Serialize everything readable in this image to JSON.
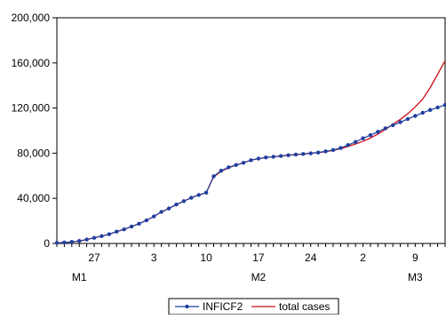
{
  "chart_data": {
    "type": "line",
    "ylim": [
      0,
      200000
    ],
    "y_ticks": [
      0,
      40000,
      80000,
      120000,
      160000,
      200000
    ],
    "y_tick_labels": [
      "0",
      "40,000",
      "80,000",
      "120,000",
      "160,000",
      "200,000"
    ],
    "x_tick_labels": [
      {
        "index": 5,
        "label": "27"
      },
      {
        "index": 13,
        "label": "3"
      },
      {
        "index": 20,
        "label": "10"
      },
      {
        "index": 27,
        "label": "17"
      },
      {
        "index": 34,
        "label": "24"
      },
      {
        "index": 41,
        "label": "2"
      },
      {
        "index": 48,
        "label": "9"
      }
    ],
    "x_group_labels": [
      {
        "index": 3,
        "label": "M1"
      },
      {
        "index": 27,
        "label": "M2"
      },
      {
        "index": 48,
        "label": "M3"
      }
    ],
    "n_points": 53,
    "series": [
      {
        "name": "INFICF2",
        "color": "#1f3f9f",
        "marker": "dot",
        "values": [
          550,
          900,
          1400,
          2200,
          3500,
          5000,
          6500,
          8200,
          10500,
          12500,
          15000,
          17500,
          20500,
          24000,
          28000,
          31000,
          34500,
          37500,
          40500,
          43000,
          45000,
          59500,
          64500,
          67500,
          69500,
          71500,
          73800,
          75200,
          76200,
          76800,
          77500,
          78200,
          78800,
          79300,
          79900,
          80600,
          81600,
          82800,
          84600,
          87200,
          90000,
          93200,
          96000,
          99000,
          102000,
          104800,
          107500,
          110300,
          113000,
          115800,
          118300,
          120500,
          122800
        ]
      },
      {
        "name": "total cases",
        "color": "#d0101a",
        "marker": "none",
        "values": [
          550,
          900,
          1400,
          2200,
          3500,
          5000,
          6500,
          8200,
          10500,
          12500,
          15000,
          17500,
          20500,
          24000,
          28000,
          31000,
          34500,
          37500,
          40500,
          43000,
          45000,
          59000,
          64000,
          67000,
          69500,
          71500,
          73800,
          75200,
          76200,
          76800,
          77500,
          78200,
          78800,
          79300,
          79900,
          80500,
          81300,
          82500,
          84000,
          86000,
          88200,
          90500,
          93500,
          97000,
          101000,
          105500,
          110000,
          115000,
          121000,
          128000,
          138000,
          150000,
          162000
        ]
      }
    ]
  }
}
